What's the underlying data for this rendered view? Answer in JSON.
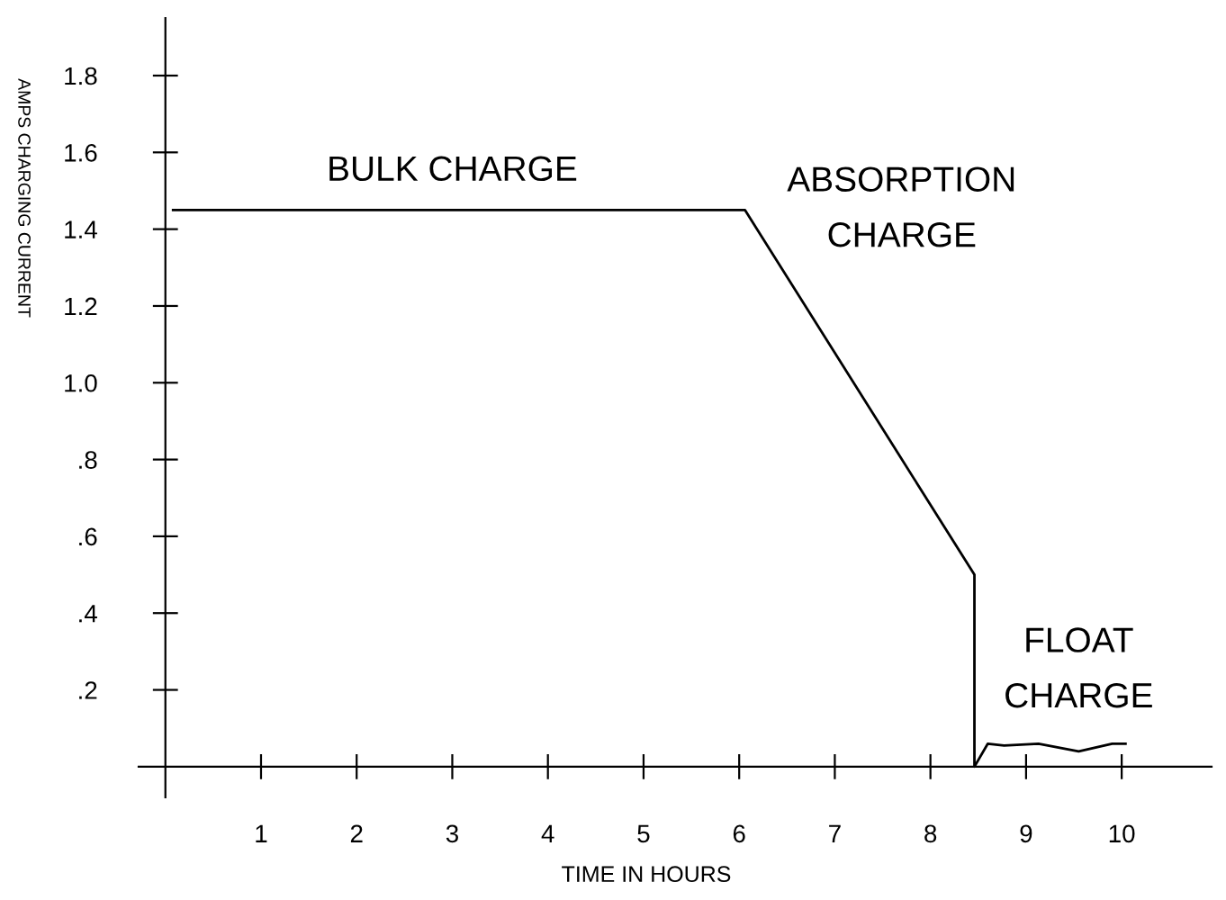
{
  "chart_data": {
    "type": "line",
    "xlabel": "TIME IN HOURS",
    "ylabel": "AMPS CHARGING CURRENT",
    "x": [
      0.08,
      6.06,
      8.46,
      8.46,
      8.6,
      8.77,
      9.13,
      9.55,
      9.9,
      10.04
    ],
    "series": [
      {
        "color": "#000000",
        "values": [
          1.45,
          1.45,
          0.5,
          0.0,
          0.06,
          0.055,
          0.06,
          0.04,
          0.06,
          0.06
        ]
      }
    ],
    "xlim": [
      -0.28,
      10.94
    ],
    "ylim": [
      -0.08,
      1.95
    ],
    "xticks": [
      1,
      2,
      3,
      4,
      5,
      6,
      7,
      8,
      9,
      10
    ],
    "yticks": [
      {
        "value": 0.2,
        "label": ".2"
      },
      {
        "value": 0.4,
        "label": ".4"
      },
      {
        "value": 0.6,
        "label": ".6"
      },
      {
        "value": 0.8,
        "label": ".8"
      },
      {
        "value": 1.0,
        "label": "1.0"
      },
      {
        "value": 1.2,
        "label": "1.2"
      },
      {
        "value": 1.4,
        "label": "1.4"
      },
      {
        "value": 1.6,
        "label": "1.6"
      },
      {
        "value": 1.8,
        "label": "1.8"
      }
    ],
    "grid": false,
    "legend": false,
    "marker": "none",
    "line_style": "solid",
    "annotations": [
      "BULK CHARGE",
      "ABSORPTION\nCHARGE",
      "FLOAT\nCHARGE"
    ]
  }
}
